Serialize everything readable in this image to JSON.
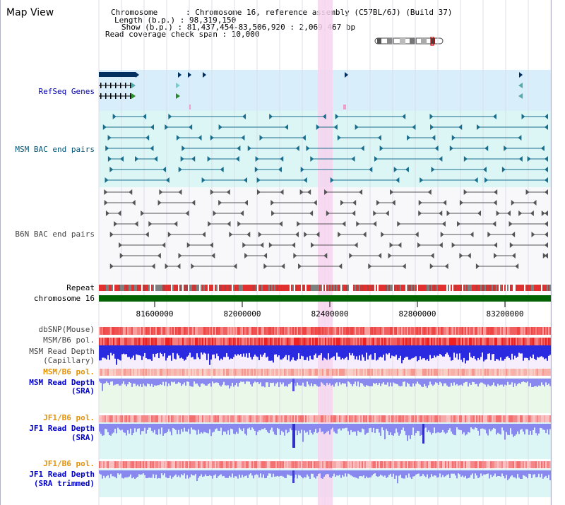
{
  "title": "Map View",
  "info": {
    "chromosome": "Chromosome      : Chromosome 16, reference assembly (C57BL/6J) (Build 37)",
    "length": "Length (b.p.) : 98,319,150",
    "show": "Show (b.p.) : 81,437,454-83,506,920 : 2,069,467 bp",
    "coverage": "Read coverage check span : 10,000"
  },
  "tracks": {
    "refseq": "RefSeq Genes",
    "msm_bac": "MSM BAC end pairs",
    "b6n_bac": "B6N BAC end pairs",
    "repeat": "Repeat",
    "chromosome": "chromosome 16",
    "dbsnp": "dbSNP(Mouse)",
    "msm_b6_pol": "MSM/B6 pol.",
    "msm_depth_cap_1": "MSM Read Depth",
    "msm_depth_cap_2": "(Capillary)",
    "msm_b6_pol_2": "MSM/B6 pol.",
    "msm_depth_sra_1": "MSM Read Depth",
    "msm_depth_sra_2": "(SRA)",
    "jf1_b6_pol": "JF1/B6 pol.",
    "jf1_depth_sra_1": "JF1 Read Depth",
    "jf1_depth_sra_2": "(SRA)",
    "jf1_b6_pol_2": "JF1/B6 pol.",
    "jf1_depth_trim_1": "JF1 Read Depth",
    "jf1_depth_trim_2": "(SRA trimmed)"
  },
  "axis": {
    "ticks": [
      "81600000",
      "82000000",
      "82400000",
      "82800000",
      "83200000"
    ]
  },
  "colors": {
    "refseq_bg": "#d8eefa",
    "msm_bac_bg": "#dcf6f6",
    "b6n_bg": "#f8f8fb",
    "depth_cap_bg": "#f6eefc",
    "sra_bg": "#eaf8ea",
    "jf1_bg": "#dcf6f6",
    "highlight": "#f7d4ef",
    "chromosome_bar": "#006400",
    "gene": "#003060",
    "msm_pair": "#1a6e8c",
    "b6n_pair": "#555555",
    "depth_blue": "#2a2ae0",
    "depth_light": "#8888ee",
    "pol_red": "#ee4444",
    "pol_pink": "#f4a0a0"
  }
}
